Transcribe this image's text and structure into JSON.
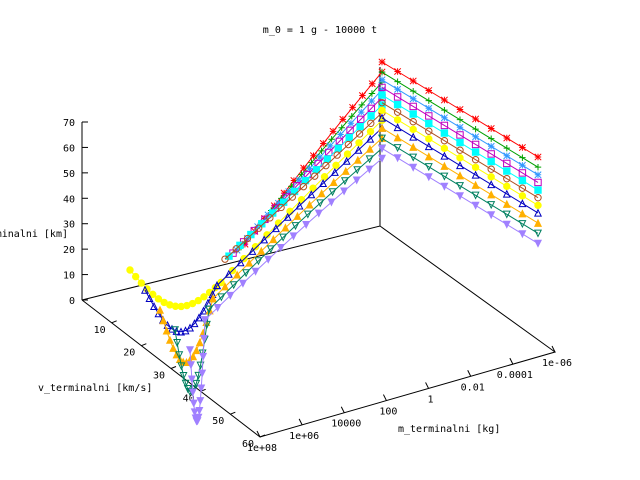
{
  "chart_data": {
    "type": "scatter",
    "projection": "3d",
    "title": "m_0 = 1 g - 10000 t",
    "xlabel": "m_terminalni [kg]",
    "ylabel": "v_terminalni [km/s]",
    "zlabel": "h_terminalni [km]",
    "x_scale": "log",
    "x_range": [
      1e-06,
      100000000.0
    ],
    "y_range": [
      0,
      60
    ],
    "z_range": [
      0,
      70
    ],
    "x_ticks": [
      "1e+08",
      "1e+06",
      "10000",
      "100",
      "1",
      "0.01",
      "0.0001",
      "1e-06"
    ],
    "y_ticks": [
      "10",
      "20",
      "30",
      "40",
      "50",
      "60"
    ],
    "z_ticks": [
      "70",
      "60",
      "50",
      "40",
      "30",
      "20",
      "10",
      "0"
    ],
    "grid": false,
    "legend": "none",
    "series": [
      {
        "color": "#ff0000",
        "marker": "plus",
        "z_top": 70,
        "z_mid": 55,
        "z_low": 20
      },
      {
        "color": "#00a000",
        "marker": "cross",
        "z_top": 66,
        "z_mid": 52,
        "z_low": 20
      },
      {
        "color": "#3399ff",
        "marker": "asterisk",
        "z_top": 63,
        "z_mid": 49,
        "z_low": 20
      },
      {
        "color": "#c000c0",
        "marker": "square",
        "z_top": 60,
        "z_mid": 46,
        "z_low": 20
      },
      {
        "color": "#00ffff",
        "marker": "filled-square",
        "z_top": 57,
        "z_mid": 43,
        "z_low": 20
      },
      {
        "color": "#b05020",
        "marker": "circle",
        "z_top": 54,
        "z_mid": 40,
        "z_low": 20
      },
      {
        "color": "#ffff00",
        "marker": "filled-circle",
        "z_top": 51,
        "z_mid": 37,
        "z_low": 12
      },
      {
        "color": "#0000c0",
        "marker": "triangle",
        "z_top": 48,
        "z_mid": 34,
        "z_low": 12
      },
      {
        "color": "#ffb000",
        "marker": "filled-triangle",
        "z_top": 44,
        "z_mid": 31,
        "z_low": 8
      },
      {
        "color": "#008060",
        "marker": "inverted-triangle",
        "z_top": 40,
        "z_mid": 28,
        "z_low": 5
      },
      {
        "color": "#a080ff",
        "marker": "filled-inverted-triangle",
        "z_top": 36,
        "z_mid": 24,
        "z_low": 2
      }
    ]
  }
}
